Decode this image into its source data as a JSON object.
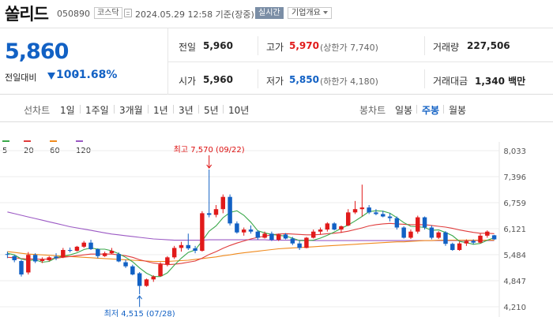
{
  "header": {
    "name": "쏠리드",
    "code": "050890",
    "market": "코스닥",
    "timestamp": "2024.05.29 12:58 기준(장중)",
    "realtime": "실시간",
    "company_info": "기업개요"
  },
  "summary": {
    "price": "5,860",
    "change_label": "전일대비",
    "change": "100",
    "change_pct": "-1.68%",
    "prev_close_label": "전일",
    "prev_close": "5,960",
    "open_label": "시가",
    "open": "5,960",
    "high_label": "고가",
    "high": "5,970",
    "upper_limit": "(상한가 7,740)",
    "low_label": "저가",
    "low": "5,850",
    "lower_limit": "(하한가 4,180)",
    "volume_label": "거래량",
    "volume": "227,506",
    "amount_label": "거래대금",
    "amount": "1,340 백만"
  },
  "periods": {
    "line_label": "선차트",
    "line_tabs": [
      "1일",
      "1주일",
      "3개월",
      "1년",
      "3년",
      "5년",
      "10년"
    ],
    "candle_label": "봉차트",
    "candle_tabs": [
      "일봉",
      "주봉",
      "월봉"
    ],
    "candle_active": 1
  },
  "colors": {
    "up": "#e11a1a",
    "down": "#1261c4",
    "ma5": "#3aa84a",
    "ma20": "#e03c3c",
    "ma60": "#f08a1d",
    "ma120": "#9b59c4"
  },
  "chart_data": {
    "type": "candlestick",
    "title": "",
    "ylim": [
      4210,
      8033
    ],
    "y_ticks": [
      "8,033",
      "7,396",
      "6,759",
      "6,121",
      "5,484",
      "4,847",
      "4,210"
    ],
    "legend": [
      "5",
      "20",
      "60",
      "120"
    ],
    "annotations": {
      "high": "최고 7,570 (09/22)",
      "low": "최저 4,515 (07/28)"
    },
    "ohlc": [
      [
        5500,
        5560,
        5400,
        5480
      ],
      [
        5450,
        5480,
        5300,
        5350
      ],
      [
        5330,
        5360,
        4950,
        5000
      ],
      [
        5050,
        5550,
        5000,
        5480
      ],
      [
        5480,
        5520,
        5280,
        5320
      ],
      [
        5330,
        5420,
        5280,
        5380
      ],
      [
        5350,
        5450,
        5320,
        5420
      ],
      [
        5440,
        5520,
        5350,
        5400
      ],
      [
        5420,
        5650,
        5400,
        5600
      ],
      [
        5600,
        5660,
        5540,
        5580
      ],
      [
        5580,
        5700,
        5560,
        5680
      ],
      [
        5680,
        5820,
        5650,
        5780
      ],
      [
        5780,
        5850,
        5600,
        5620
      ],
      [
        5620,
        5640,
        5400,
        5450
      ],
      [
        5450,
        5560,
        5430,
        5520
      ],
      [
        5520,
        5650,
        5500,
        5580
      ],
      [
        5500,
        5540,
        5300,
        5320
      ],
      [
        5300,
        5360,
        5160,
        5200
      ],
      [
        5200,
        5240,
        4980,
        5000
      ],
      [
        5030,
        5060,
        4515,
        4720
      ],
      [
        4720,
        4900,
        4700,
        4880
      ],
      [
        4880,
        4980,
        4820,
        4950
      ],
      [
        4960,
        5300,
        4950,
        5250
      ],
      [
        5250,
        5450,
        5200,
        5420
      ],
      [
        5420,
        5700,
        5380,
        5650
      ],
      [
        5650,
        5800,
        5560,
        5720
      ],
      [
        5720,
        6000,
        5600,
        5640
      ],
      [
        5640,
        5700,
        5520,
        5580
      ],
      [
        5580,
        6550,
        5560,
        6500
      ],
      [
        6500,
        7570,
        6400,
        6460
      ],
      [
        6460,
        6700,
        6400,
        6600
      ],
      [
        6600,
        6960,
        6500,
        6900
      ],
      [
        6900,
        6960,
        6200,
        6250
      ],
      [
        6250,
        6300,
        6000,
        6030
      ],
      [
        6030,
        6150,
        5950,
        6100
      ],
      [
        6100,
        6200,
        6000,
        6050
      ],
      [
        6050,
        6080,
        5850,
        5900
      ],
      [
        5900,
        6050,
        5880,
        6000
      ],
      [
        6000,
        6050,
        5820,
        5850
      ],
      [
        5850,
        6000,
        5820,
        5980
      ],
      [
        5980,
        6010,
        5860,
        5880
      ],
      [
        5880,
        5920,
        5720,
        5760
      ],
      [
        5760,
        5820,
        5600,
        5650
      ],
      [
        5650,
        5920,
        5640,
        5900
      ],
      [
        5900,
        6100,
        5880,
        6050
      ],
      [
        6050,
        6150,
        5980,
        6100
      ],
      [
        6100,
        6280,
        6050,
        6250
      ],
      [
        6250,
        6280,
        6080,
        6100
      ],
      [
        6100,
        6200,
        6020,
        6180
      ],
      [
        6200,
        6600,
        6180,
        6520
      ],
      [
        6520,
        6800,
        6480,
        6600
      ],
      [
        6600,
        7200,
        6420,
        6640
      ],
      [
        6640,
        6700,
        6480,
        6520
      ],
      [
        6520,
        6600,
        6450,
        6480
      ],
      [
        6480,
        6560,
        6400,
        6420
      ],
      [
        6420,
        6500,
        6300,
        6380
      ],
      [
        6380,
        6420,
        6100,
        6150
      ],
      [
        6150,
        6180,
        5880,
        5900
      ],
      [
        5900,
        6100,
        5870,
        6050
      ],
      [
        6050,
        6440,
        6000,
        6400
      ],
      [
        6400,
        6420,
        6100,
        6150
      ],
      [
        6150,
        6200,
        5860,
        5900
      ],
      [
        5900,
        6060,
        5870,
        6030
      ],
      [
        6030,
        6060,
        5700,
        5750
      ],
      [
        5750,
        5780,
        5580,
        5600
      ],
      [
        5600,
        5800,
        5580,
        5760
      ],
      [
        5760,
        5860,
        5700,
        5820
      ],
      [
        5820,
        5860,
        5740,
        5780
      ],
      [
        5780,
        6000,
        5760,
        5950
      ],
      [
        5950,
        6080,
        5900,
        6050
      ],
      [
        5960,
        5970,
        5850,
        5860
      ]
    ],
    "ma5": [
      5520,
      5480,
      5380,
      5340,
      5360,
      5300,
      5320,
      5410,
      5450,
      5480,
      5530,
      5610,
      5650,
      5620,
      5620,
      5580,
      5510,
      5420,
      5310,
      5160,
      5030,
      4950,
      4950,
      5040,
      5230,
      5400,
      5540,
      5600,
      5820,
      6060,
      6190,
      6390,
      6520,
      6560,
      6450,
      6280,
      6070,
      6020,
      5980,
      5960,
      5940,
      5890,
      5830,
      5830,
      5840,
      5890,
      5960,
      6040,
      6130,
      6210,
      6310,
      6420,
      6540,
      6560,
      6550,
      6500,
      6390,
      6270,
      6180,
      6170,
      6150,
      6080,
      6090,
      6030,
      5950,
      5810,
      5780,
      5740,
      5760,
      5840,
      5900
    ],
    "ma20": [
      5420,
      5410,
      5390,
      5380,
      5380,
      5370,
      5380,
      5400,
      5420,
      5440,
      5460,
      5480,
      5500,
      5500,
      5500,
      5500,
      5480,
      5460,
      5420,
      5360,
      5320,
      5280,
      5260,
      5240,
      5250,
      5270,
      5300,
      5330,
      5400,
      5490,
      5560,
      5640,
      5710,
      5770,
      5820,
      5870,
      5910,
      5940,
      5970,
      5990,
      6000,
      5990,
      5980,
      5970,
      5970,
      5980,
      6000,
      6010,
      6030,
      6060,
      6100,
      6140,
      6190,
      6220,
      6240,
      6250,
      6240,
      6230,
      6220,
      6220,
      6220,
      6200,
      6180,
      6160,
      6130,
      6090,
      6060,
      6030,
      6010,
      6010,
      6000
    ],
    "ma60": [
      5560,
      5540,
      5520,
      5500,
      5490,
      5480,
      5470,
      5460,
      5450,
      5440,
      5430,
      5420,
      5410,
      5400,
      5390,
      5380,
      5370,
      5360,
      5350,
      5340,
      5330,
      5320,
      5320,
      5320,
      5330,
      5340,
      5350,
      5370,
      5390,
      5410,
      5430,
      5460,
      5480,
      5510,
      5530,
      5550,
      5570,
      5590,
      5610,
      5630,
      5640,
      5650,
      5660,
      5670,
      5680,
      5690,
      5700,
      5710,
      5720,
      5730,
      5740,
      5750,
      5760,
      5770,
      5780,
      5790,
      5800,
      5800,
      5810,
      5820,
      5830,
      5830,
      5840,
      5840,
      5840,
      5840,
      5840,
      5840,
      5840,
      5840,
      5840
    ],
    "ma120": [
      6530,
      6490,
      6450,
      6410,
      6370,
      6330,
      6290,
      6250,
      6210,
      6170,
      6140,
      6110,
      6080,
      6050,
      6020,
      5990,
      5970,
      5950,
      5930,
      5910,
      5890,
      5870,
      5860,
      5850,
      5840,
      5840,
      5840,
      5840,
      5840,
      5850,
      5850,
      5850,
      5850,
      5850,
      5850,
      5850,
      5850,
      5850,
      5840,
      5840,
      5840,
      5840,
      5840,
      5840,
      5830,
      5830,
      5830,
      5830,
      5830,
      5830,
      5830,
      5830,
      5830,
      5830,
      5830,
      5830,
      5830,
      5830,
      5830,
      5830,
      5830,
      5830,
      5830,
      5830,
      5830,
      5830,
      5830,
      5830,
      5830,
      5830,
      5830
    ]
  }
}
